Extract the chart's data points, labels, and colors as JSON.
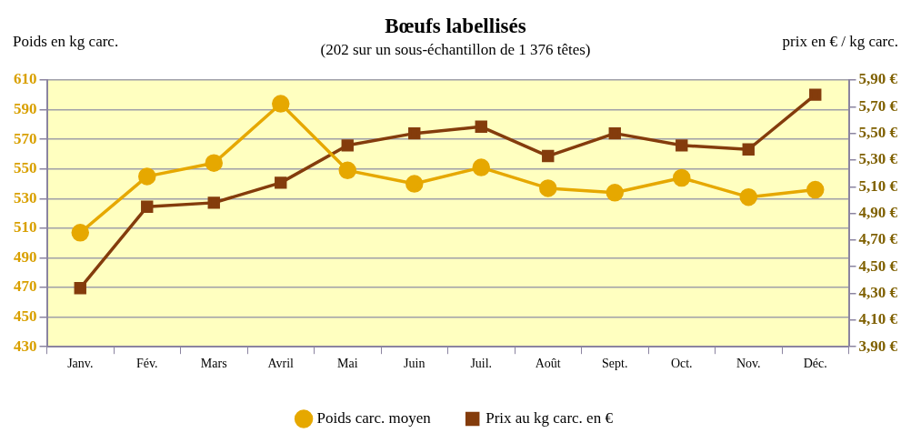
{
  "chart_data": {
    "type": "line",
    "title": "Bœufs labellisés",
    "subtitle": "(202 sur un sous-échantillon de 1 376 têtes)",
    "ylabel": "Poids en kg carc.",
    "y2label": "prix en € / kg carc.",
    "categories": [
      "Janv.",
      "Fév.",
      "Mars",
      "Avril",
      "Mai",
      "Juin",
      "Juil.",
      "Août",
      "Sept.",
      "Oct.",
      "Nov.",
      "Déc."
    ],
    "series": [
      {
        "name": "Poids carc. moyen",
        "color": "#e6a800",
        "marker": "circle",
        "values": [
          507,
          545,
          554,
          594,
          549,
          540,
          551,
          537,
          534,
          544,
          531,
          536
        ]
      },
      {
        "name": "Prix au kg carc. en €",
        "color": "#843c0c",
        "marker": "square",
        "axis": "y2",
        "values": [
          4.34,
          4.95,
          4.98,
          5.13,
          5.41,
          5.5,
          5.55,
          5.33,
          5.5,
          5.41,
          5.38,
          5.79
        ]
      }
    ],
    "ylim": [
      430,
      610
    ],
    "yticks": [
      430,
      450,
      470,
      490,
      510,
      530,
      550,
      570,
      590,
      610
    ],
    "y2lim": [
      3.9,
      5.9
    ],
    "y2ticks": [
      {
        "value": 3.9,
        "label": "3,90 €"
      },
      {
        "value": 4.1,
        "label": "4,10 €"
      },
      {
        "value": 4.3,
        "label": "4,30 €"
      },
      {
        "value": 4.5,
        "label": "4,50 €"
      },
      {
        "value": 4.7,
        "label": "4,70 €"
      },
      {
        "value": 4.9,
        "label": "4,90 €"
      },
      {
        "value": 5.1,
        "label": "5,10 €"
      },
      {
        "value": 5.3,
        "label": "5,30 €"
      },
      {
        "value": 5.5,
        "label": "5,50 €"
      },
      {
        "value": 5.7,
        "label": "5,70 €"
      },
      {
        "value": 5.9,
        "label": "5,90 €"
      }
    ],
    "grid": "y",
    "legend": "bottom",
    "line_style": "solid"
  }
}
